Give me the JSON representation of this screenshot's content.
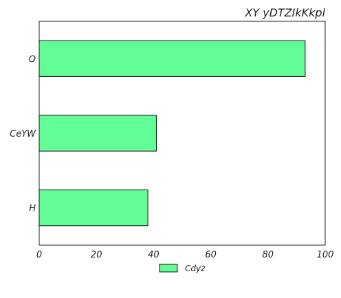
{
  "chart_data": {
    "type": "bar",
    "orientation": "horizontal",
    "title": "XY yDTZIkKkpl",
    "xlabel": "",
    "ylabel": "",
    "categories": [
      "O",
      "CeYW",
      "H"
    ],
    "series": [
      {
        "name": "Cdyz",
        "values": [
          93,
          41,
          38
        ]
      }
    ],
    "xlim": [
      0,
      100
    ],
    "xticks": [
      0,
      20,
      40,
      60,
      80,
      100
    ],
    "grid": false,
    "legend": "bottom-center",
    "colors": {
      "bar_fill": "#62fd94",
      "bar_edge": "#111111",
      "axis": "#222222"
    }
  }
}
